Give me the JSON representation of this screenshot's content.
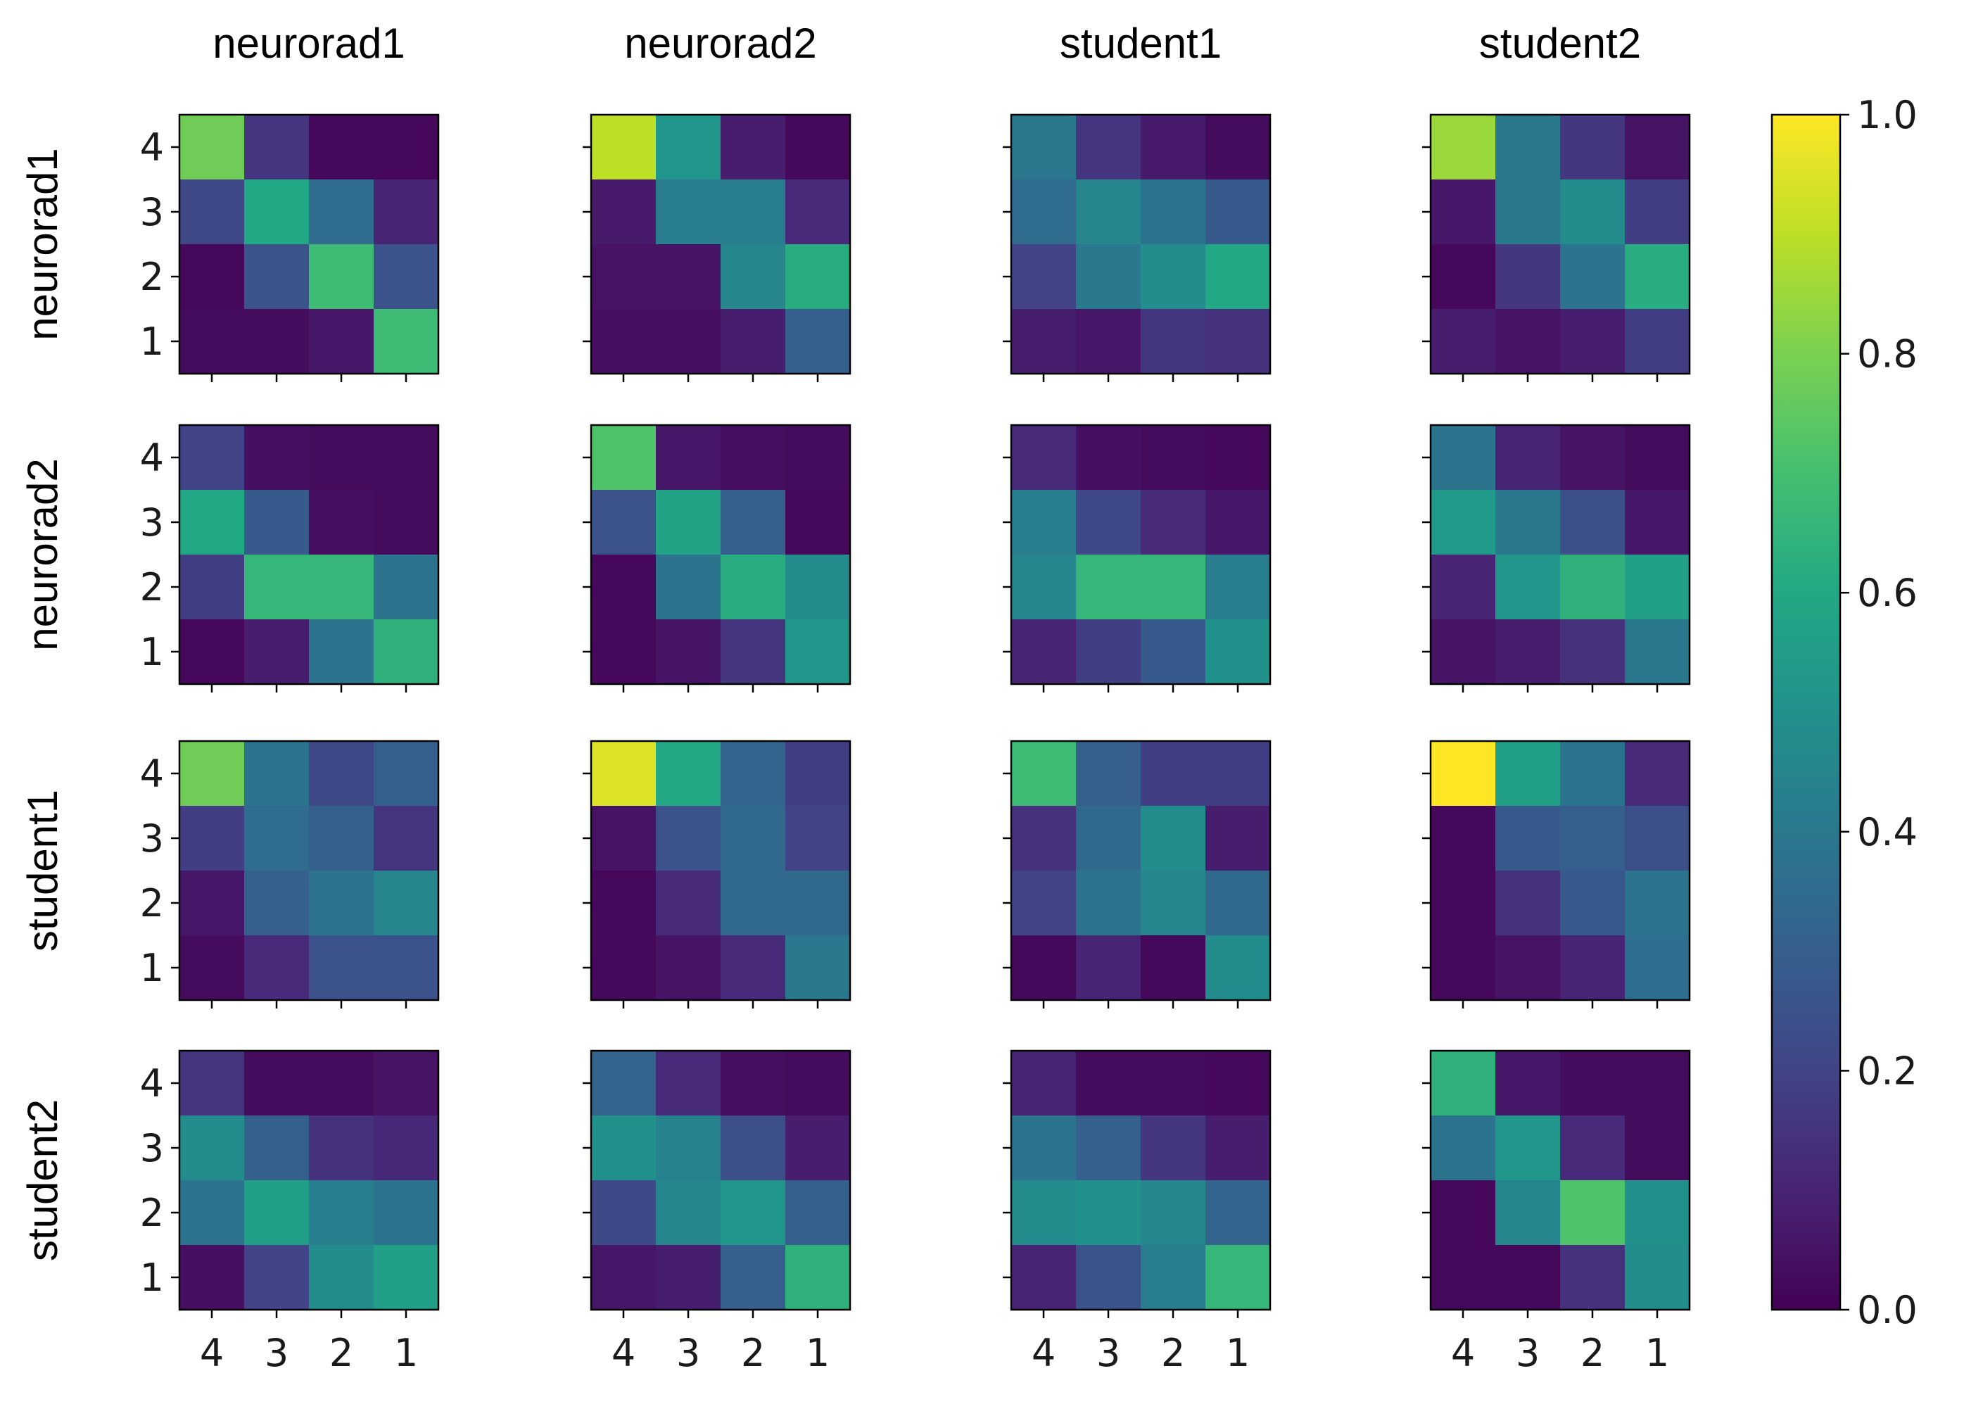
{
  "chart_data": {
    "type": "heatmap",
    "colormap": "viridis",
    "raters": [
      "neurorad1",
      "neurorad2",
      "student1",
      "student2"
    ],
    "column_titles": [
      "neurorad1",
      "neurorad2",
      "student1",
      "student2"
    ],
    "row_titles": [
      "neurorad1",
      "neurorad2",
      "student1",
      "student2"
    ],
    "x_tick_labels": [
      "4",
      "3",
      "2",
      "1"
    ],
    "y_tick_labels": [
      "4",
      "3",
      "2",
      "1"
    ],
    "colorbar": {
      "range": [
        0.0,
        1.0
      ],
      "ticks": [
        0.0,
        0.2,
        0.4,
        0.6,
        0.8,
        1.0
      ],
      "tick_labels": [
        "0.0",
        "0.2",
        "0.4",
        "0.6",
        "0.8",
        "1.0"
      ]
    },
    "matrices": [
      [
        [
          [
            0.78,
            0.15,
            0.02,
            0.02
          ],
          [
            0.22,
            0.6,
            0.35,
            0.1
          ],
          [
            0.02,
            0.25,
            0.68,
            0.25
          ],
          [
            0.03,
            0.03,
            0.06,
            0.68
          ]
        ],
        [
          [
            0.9,
            0.52,
            0.08,
            0.02
          ],
          [
            0.07,
            0.42,
            0.42,
            0.12
          ],
          [
            0.05,
            0.05,
            0.45,
            0.62
          ],
          [
            0.04,
            0.04,
            0.08,
            0.3
          ]
        ],
        [
          [
            0.4,
            0.15,
            0.07,
            0.03
          ],
          [
            0.35,
            0.45,
            0.38,
            0.28
          ],
          [
            0.2,
            0.4,
            0.48,
            0.6
          ],
          [
            0.08,
            0.06,
            0.16,
            0.14
          ]
        ],
        [
          [
            0.85,
            0.4,
            0.16,
            0.05
          ],
          [
            0.06,
            0.4,
            0.48,
            0.18
          ],
          [
            0.02,
            0.16,
            0.38,
            0.62
          ],
          [
            0.08,
            0.05,
            0.08,
            0.18
          ]
        ]
      ],
      [
        [
          [
            0.2,
            0.04,
            0.03,
            0.03
          ],
          [
            0.6,
            0.28,
            0.04,
            0.03
          ],
          [
            0.18,
            0.66,
            0.66,
            0.38
          ],
          [
            0.02,
            0.08,
            0.38,
            0.64
          ]
        ],
        [
          [
            0.72,
            0.06,
            0.04,
            0.03
          ],
          [
            0.25,
            0.58,
            0.3,
            0.02
          ],
          [
            0.02,
            0.38,
            0.62,
            0.48
          ],
          [
            0.02,
            0.05,
            0.15,
            0.52
          ]
        ],
        [
          [
            0.12,
            0.04,
            0.03,
            0.02
          ],
          [
            0.42,
            0.22,
            0.12,
            0.06
          ],
          [
            0.46,
            0.66,
            0.66,
            0.42
          ],
          [
            0.1,
            0.18,
            0.28,
            0.5
          ]
        ],
        [
          [
            0.38,
            0.1,
            0.05,
            0.03
          ],
          [
            0.54,
            0.4,
            0.24,
            0.06
          ],
          [
            0.1,
            0.52,
            0.64,
            0.56
          ],
          [
            0.05,
            0.08,
            0.14,
            0.4
          ]
        ]
      ],
      [
        [
          [
            0.78,
            0.38,
            0.22,
            0.3
          ],
          [
            0.18,
            0.35,
            0.3,
            0.15
          ],
          [
            0.06,
            0.3,
            0.38,
            0.45
          ],
          [
            0.03,
            0.12,
            0.25,
            0.25
          ]
        ],
        [
          [
            0.95,
            0.6,
            0.32,
            0.18
          ],
          [
            0.05,
            0.25,
            0.34,
            0.2
          ],
          [
            0.02,
            0.12,
            0.34,
            0.34
          ],
          [
            0.02,
            0.05,
            0.12,
            0.4
          ]
        ],
        [
          [
            0.68,
            0.3,
            0.18,
            0.18
          ],
          [
            0.14,
            0.34,
            0.48,
            0.08
          ],
          [
            0.2,
            0.38,
            0.45,
            0.34
          ],
          [
            0.02,
            0.1,
            0.02,
            0.48
          ]
        ],
        [
          [
            1.0,
            0.56,
            0.38,
            0.12
          ],
          [
            0.02,
            0.28,
            0.3,
            0.24
          ],
          [
            0.02,
            0.14,
            0.28,
            0.38
          ],
          [
            0.02,
            0.05,
            0.1,
            0.36
          ]
        ]
      ],
      [
        [
          [
            0.15,
            0.03,
            0.03,
            0.05
          ],
          [
            0.48,
            0.3,
            0.14,
            0.11
          ],
          [
            0.38,
            0.56,
            0.42,
            0.38
          ],
          [
            0.04,
            0.2,
            0.48,
            0.56
          ]
        ],
        [
          [
            0.32,
            0.12,
            0.04,
            0.03
          ],
          [
            0.5,
            0.44,
            0.24,
            0.08
          ],
          [
            0.22,
            0.45,
            0.52,
            0.3
          ],
          [
            0.06,
            0.08,
            0.3,
            0.64
          ]
        ],
        [
          [
            0.1,
            0.03,
            0.03,
            0.02
          ],
          [
            0.38,
            0.3,
            0.16,
            0.08
          ],
          [
            0.48,
            0.5,
            0.45,
            0.32
          ],
          [
            0.1,
            0.26,
            0.42,
            0.66
          ]
        ],
        [
          [
            0.64,
            0.06,
            0.03,
            0.03
          ],
          [
            0.38,
            0.52,
            0.12,
            0.03
          ],
          [
            0.02,
            0.46,
            0.72,
            0.5
          ],
          [
            0.02,
            0.02,
            0.14,
            0.48
          ]
        ]
      ]
    ]
  }
}
